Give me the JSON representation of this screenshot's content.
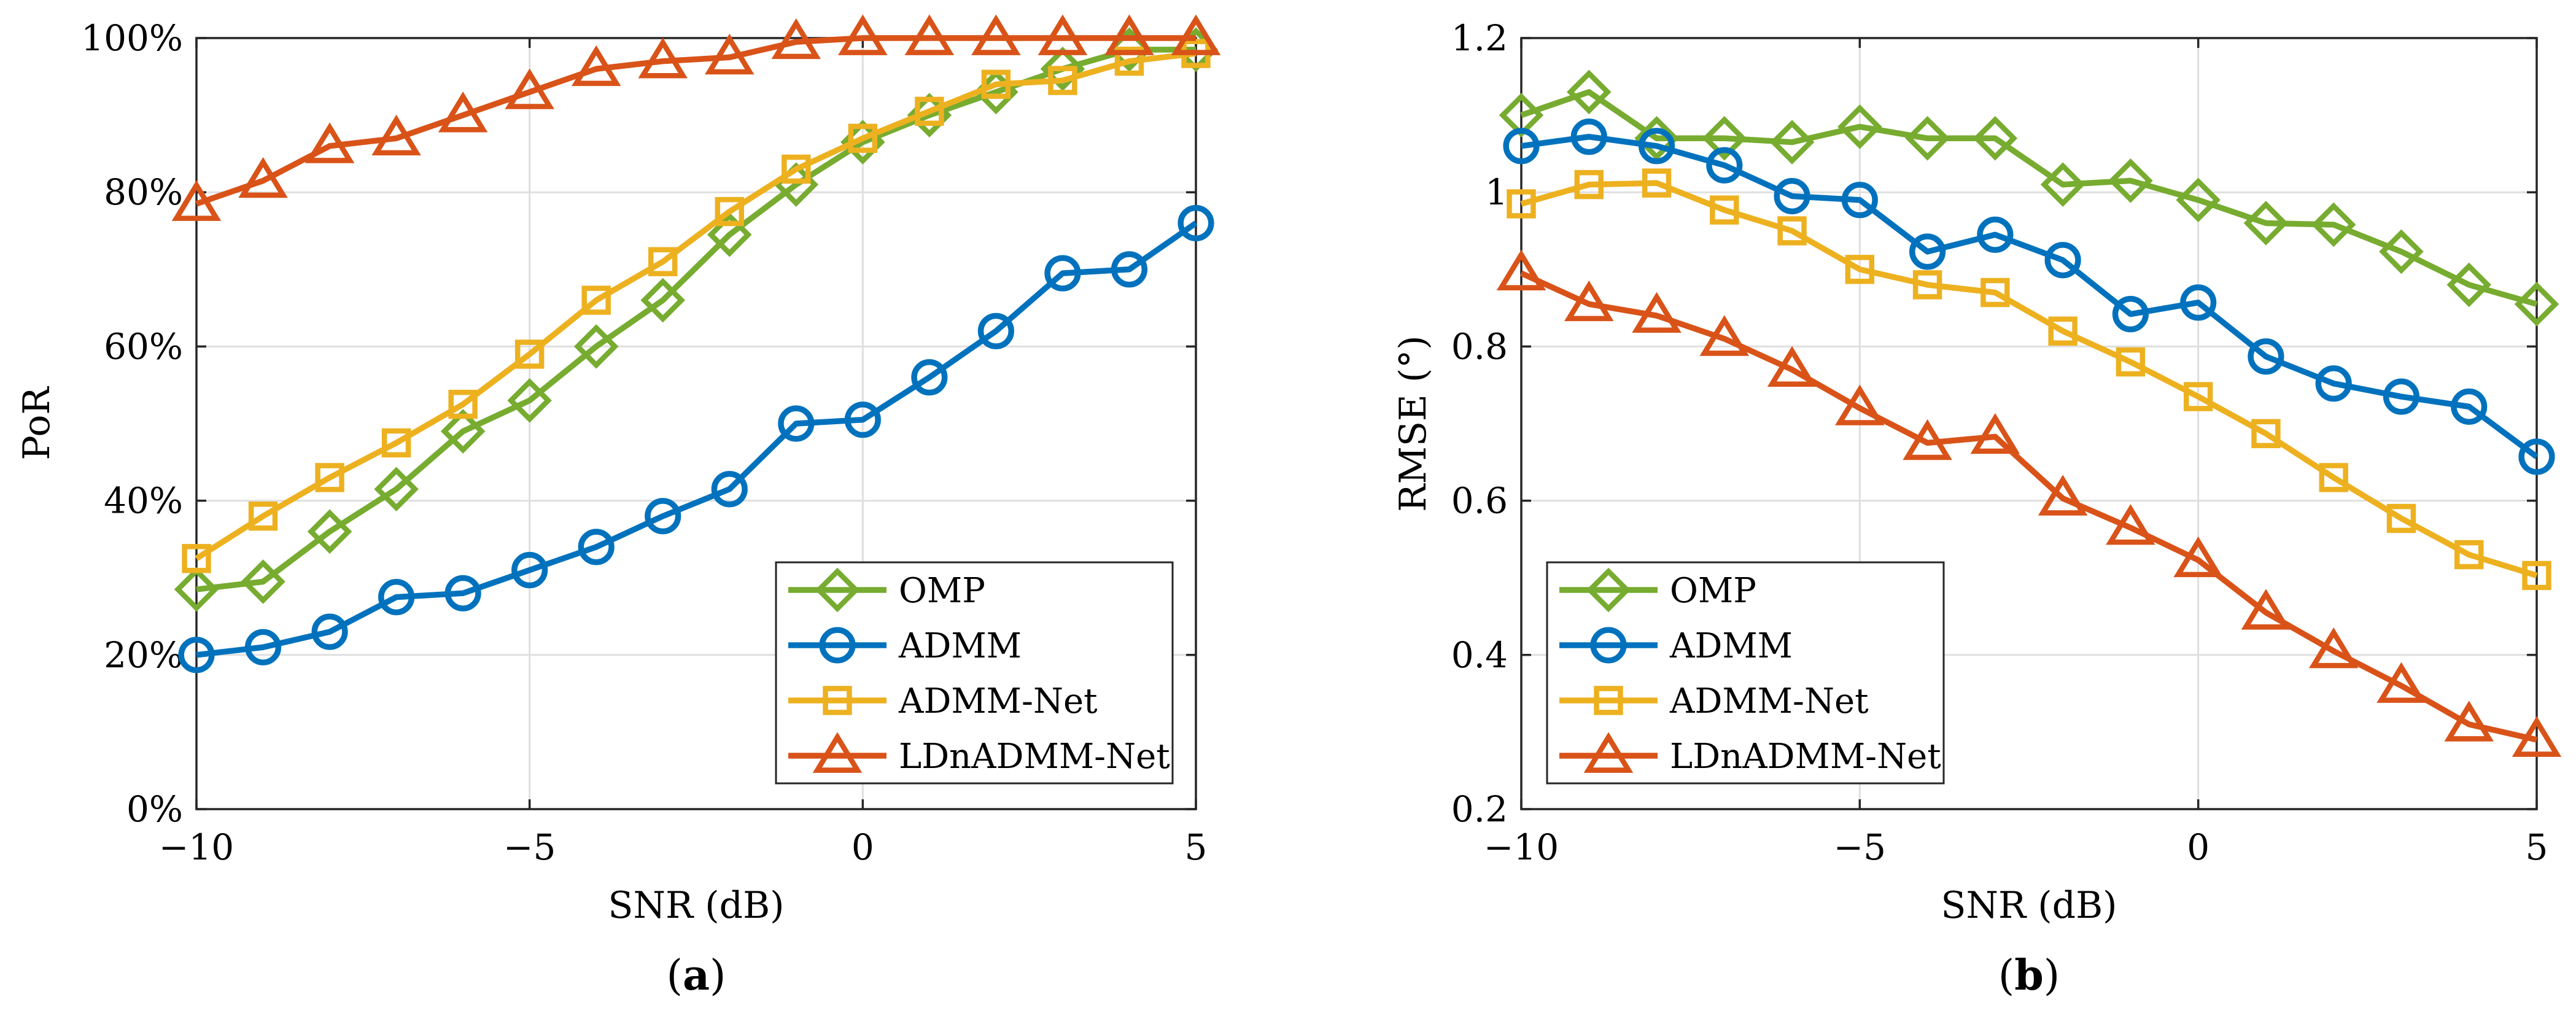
{
  "colors": {
    "OMP": "#77AC30",
    "ADMM": "#0072BD",
    "ADMM-Net": "#EDB120",
    "LDnADMM-Net": "#D95319",
    "grid": "#dfdfdf",
    "axis": "#262626"
  },
  "chart_data": [
    {
      "type": "line",
      "panel_label": "a",
      "xlabel": "SNR (dB)",
      "ylabel": "PoR",
      "xlim": [
        -10,
        5
      ],
      "ylim": [
        0,
        100
      ],
      "x_ticks": [
        -10,
        -5,
        0,
        5
      ],
      "x_tick_labels": [
        "−10",
        "−5",
        "0",
        "5"
      ],
      "y_ticks": [
        0,
        20,
        40,
        60,
        80,
        100
      ],
      "y_tick_labels": [
        "0%",
        "20%",
        "40%",
        "60%",
        "80%",
        "100%"
      ],
      "grid": true,
      "legend_position": "bottom-right",
      "x": [
        -10,
        -9,
        -8,
        -7,
        -6,
        -5,
        -4,
        -3,
        -2,
        -1,
        0,
        1,
        2,
        3,
        4,
        5
      ],
      "series": [
        {
          "name": "OMP",
          "marker": "diamond",
          "values": [
            28.5,
            29.5,
            36,
            41.5,
            49,
            53,
            60,
            66,
            74.5,
            81,
            86.5,
            90,
            93,
            96,
            98.5,
            98.5
          ]
        },
        {
          "name": "ADMM",
          "marker": "circle",
          "values": [
            20,
            21,
            23,
            27.5,
            28,
            31,
            34,
            38,
            41.5,
            50,
            50.5,
            56,
            62,
            69.5,
            70,
            76
          ]
        },
        {
          "name": "ADMM-Net",
          "marker": "square",
          "values": [
            32.5,
            38,
            43,
            47.5,
            52.5,
            59,
            66,
            71,
            77.5,
            83,
            87,
            90.5,
            94,
            94.5,
            97,
            98
          ]
        },
        {
          "name": "LDnADMM-Net",
          "marker": "triangle",
          "values": [
            78.5,
            81.5,
            86,
            87,
            90,
            93,
            96,
            97,
            97.5,
            99.5,
            100,
            100,
            100,
            100,
            100,
            100
          ]
        }
      ]
    },
    {
      "type": "line",
      "panel_label": "b",
      "xlabel": "SNR (dB)",
      "ylabel": "RMSE (°)",
      "xlim": [
        -10,
        5
      ],
      "ylim": [
        0.2,
        1.2
      ],
      "x_ticks": [
        -10,
        -5,
        0,
        5
      ],
      "x_tick_labels": [
        "−10",
        "−5",
        "0",
        "5"
      ],
      "y_ticks": [
        0.2,
        0.4,
        0.6,
        0.8,
        1.0,
        1.2
      ],
      "y_tick_labels": [
        "0.2",
        "0.4",
        "0.6",
        "0.8",
        "1",
        "1.2"
      ],
      "grid": true,
      "legend_position": "bottom-left",
      "x": [
        -10,
        -9,
        -8,
        -7,
        -6,
        -5,
        -4,
        -3,
        -2,
        -1,
        0,
        1,
        2,
        3,
        4,
        5
      ],
      "series": [
        {
          "name": "OMP",
          "marker": "diamond",
          "values": [
            1.1,
            1.13,
            1.07,
            1.07,
            1.065,
            1.085,
            1.07,
            1.07,
            1.01,
            1.015,
            0.99,
            0.96,
            0.958,
            0.923,
            0.88,
            0.855
          ]
        },
        {
          "name": "ADMM",
          "marker": "circle",
          "values": [
            1.06,
            1.072,
            1.06,
            1.035,
            0.995,
            0.99,
            0.923,
            0.945,
            0.912,
            0.842,
            0.857,
            0.787,
            0.752,
            0.735,
            0.722,
            0.657
          ]
        },
        {
          "name": "ADMM-Net",
          "marker": "square",
          "values": [
            0.985,
            1.01,
            1.012,
            0.977,
            0.95,
            0.9,
            0.88,
            0.87,
            0.82,
            0.78,
            0.735,
            0.687,
            0.63,
            0.577,
            0.53,
            0.503
          ]
        },
        {
          "name": "LDnADMM-Net",
          "marker": "triangle",
          "values": [
            0.895,
            0.855,
            0.84,
            0.81,
            0.77,
            0.72,
            0.675,
            0.683,
            0.603,
            0.565,
            0.523,
            0.455,
            0.405,
            0.36,
            0.31,
            0.29
          ]
        }
      ]
    }
  ]
}
